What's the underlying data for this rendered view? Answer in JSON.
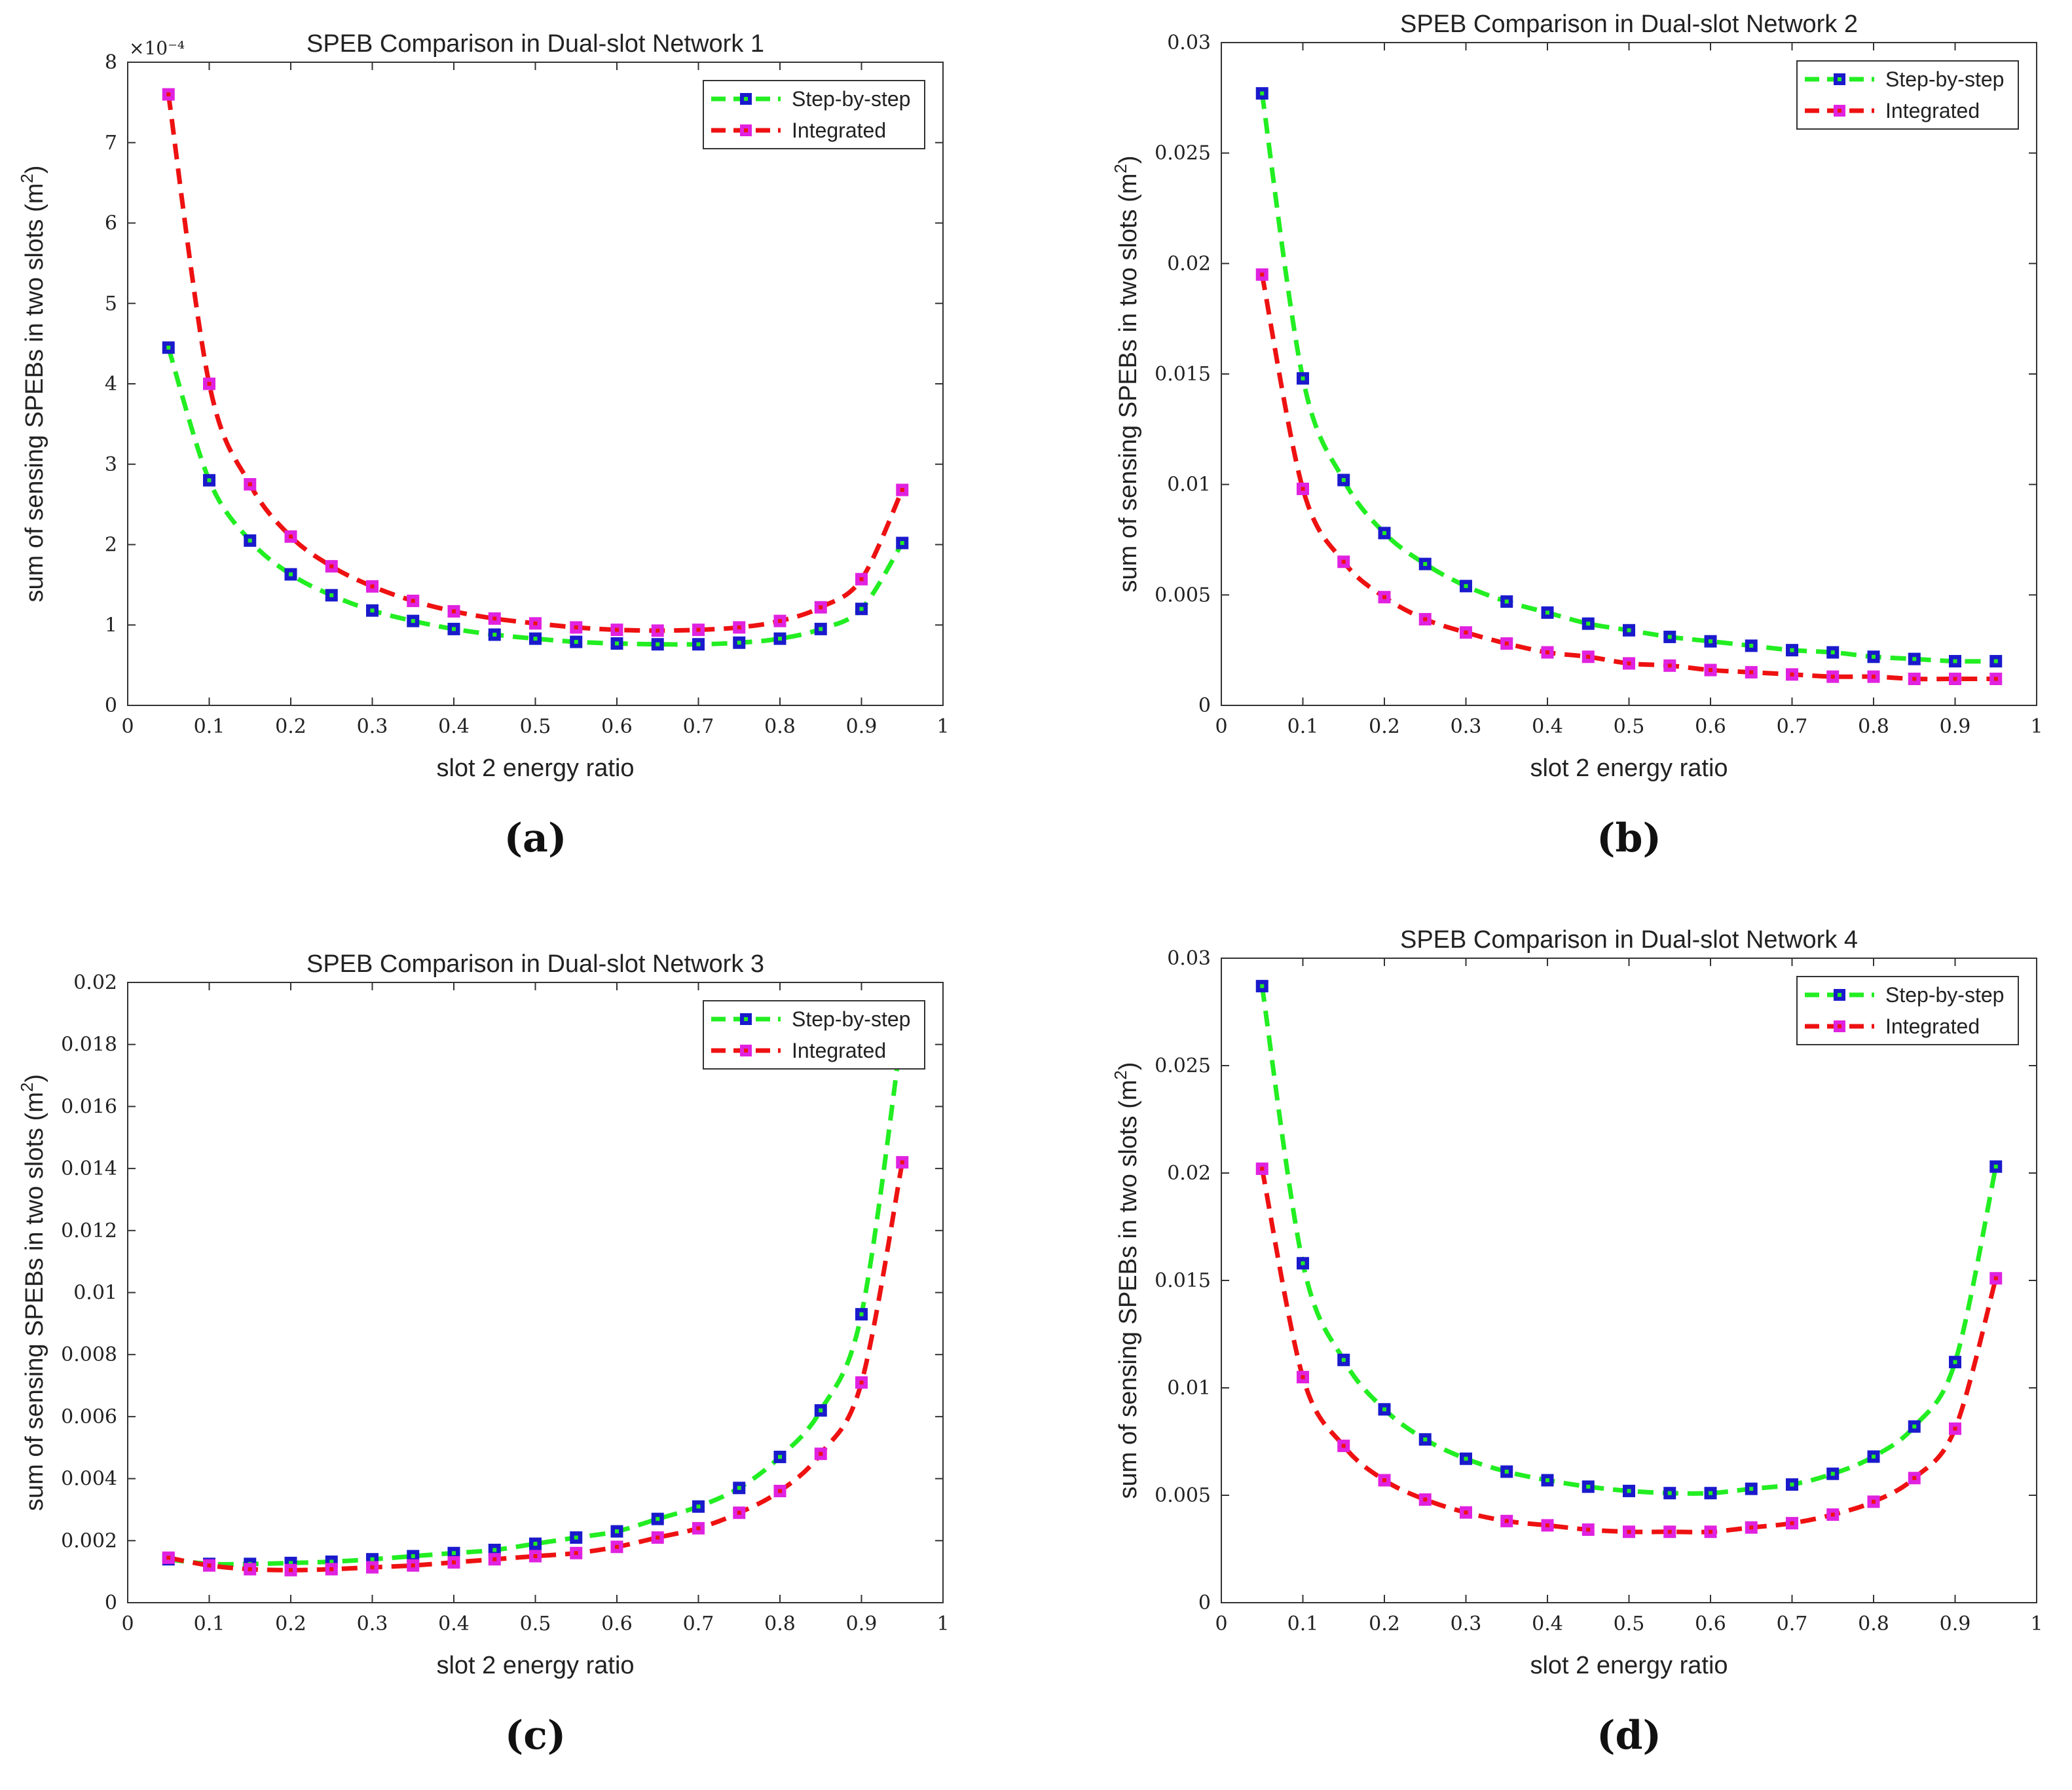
{
  "chart_data": [
    {
      "type": "line",
      "title": "SPEB Comparison in Dual-slot Network 1",
      "xlabel": "slot 2 energy ratio",
      "ylabel": "sum of sensing SPEBs in two slots (m^2)",
      "y_exponent": "×10⁻⁴",
      "caption": "(a)",
      "xlim": [
        0,
        1
      ],
      "ylim": [
        0,
        8
      ],
      "xticks": [
        "0",
        "0.1",
        "0.2",
        "0.3",
        "0.4",
        "0.5",
        "0.6",
        "0.7",
        "0.8",
        "0.9",
        "1"
      ],
      "yticks": [
        "0",
        "1",
        "2",
        "3",
        "4",
        "5",
        "6",
        "7",
        "8"
      ],
      "legend_position": "top-right",
      "x": [
        0.05,
        0.1,
        0.15,
        0.2,
        0.25,
        0.3,
        0.35,
        0.4,
        0.45,
        0.5,
        0.55,
        0.6,
        0.65,
        0.7,
        0.75,
        0.8,
        0.85,
        0.9,
        0.95
      ],
      "series": [
        {
          "name": "Step-by-step",
          "line_color": "#22ee22",
          "marker_color": "#1a1acc",
          "values": [
            4.45,
            2.8,
            2.05,
            1.63,
            1.37,
            1.18,
            1.05,
            0.95,
            0.88,
            0.83,
            0.79,
            0.77,
            0.76,
            0.76,
            0.78,
            0.83,
            0.95,
            1.2,
            2.02
          ]
        },
        {
          "name": "Integrated",
          "line_color": "#ee1111",
          "marker_color": "#e022e0",
          "values": [
            7.6,
            4.0,
            2.75,
            2.1,
            1.73,
            1.48,
            1.3,
            1.17,
            1.08,
            1.02,
            0.97,
            0.94,
            0.93,
            0.94,
            0.97,
            1.05,
            1.22,
            1.57,
            2.68
          ]
        }
      ]
    },
    {
      "type": "line",
      "title": "SPEB Comparison in Dual-slot Network 2",
      "xlabel": "slot 2 energy ratio",
      "ylabel": "sum of sensing SPEBs in two slots (m^2)",
      "caption": "(b)",
      "xlim": [
        0,
        1
      ],
      "ylim": [
        0,
        0.03
      ],
      "xticks": [
        "0",
        "0.1",
        "0.2",
        "0.3",
        "0.4",
        "0.5",
        "0.6",
        "0.7",
        "0.8",
        "0.9",
        "1"
      ],
      "yticks": [
        "0",
        "0.005",
        "0.01",
        "0.015",
        "0.02",
        "0.025",
        "0.03"
      ],
      "legend_position": "top-right",
      "x": [
        0.05,
        0.1,
        0.15,
        0.2,
        0.25,
        0.3,
        0.35,
        0.4,
        0.45,
        0.5,
        0.55,
        0.6,
        0.65,
        0.7,
        0.75,
        0.8,
        0.85,
        0.9,
        0.95
      ],
      "series": [
        {
          "name": "Step-by-step",
          "line_color": "#22ee22",
          "marker_color": "#1a1acc",
          "values": [
            0.0277,
            0.0148,
            0.0102,
            0.0078,
            0.0064,
            0.0054,
            0.0047,
            0.0042,
            0.0037,
            0.0034,
            0.0031,
            0.0029,
            0.0027,
            0.0025,
            0.0024,
            0.0022,
            0.0021,
            0.002,
            0.002
          ]
        },
        {
          "name": "Integrated",
          "line_color": "#ee1111",
          "marker_color": "#e022e0",
          "values": [
            0.0195,
            0.0098,
            0.0065,
            0.0049,
            0.0039,
            0.0033,
            0.0028,
            0.0024,
            0.0022,
            0.0019,
            0.0018,
            0.0016,
            0.0015,
            0.0014,
            0.0013,
            0.0013,
            0.0012,
            0.0012,
            0.0012
          ]
        }
      ]
    },
    {
      "type": "line",
      "title": "SPEB Comparison in Dual-slot Network 3",
      "xlabel": "slot 2 energy ratio",
      "ylabel": "sum of sensing SPEBs in two slots (m^2)",
      "caption": "(c)",
      "xlim": [
        0,
        1
      ],
      "ylim": [
        0,
        0.02
      ],
      "xticks": [
        "0",
        "0.1",
        "0.2",
        "0.3",
        "0.4",
        "0.5",
        "0.6",
        "0.7",
        "0.8",
        "0.9",
        "1"
      ],
      "yticks": [
        "0",
        "0.002",
        "0.004",
        "0.006",
        "0.008",
        "0.01",
        "0.012",
        "0.014",
        "0.016",
        "0.018",
        "0.02"
      ],
      "legend_position": "top-right",
      "x": [
        0.05,
        0.1,
        0.15,
        0.2,
        0.25,
        0.3,
        0.35,
        0.4,
        0.45,
        0.5,
        0.55,
        0.6,
        0.65,
        0.7,
        0.75,
        0.8,
        0.85,
        0.9,
        0.95
      ],
      "series": [
        {
          "name": "Step-by-step",
          "line_color": "#22ee22",
          "marker_color": "#1a1acc",
          "values": [
            0.0014,
            0.00125,
            0.00125,
            0.00128,
            0.00132,
            0.0014,
            0.0015,
            0.0016,
            0.0017,
            0.0019,
            0.0021,
            0.0023,
            0.0027,
            0.0031,
            0.0037,
            0.0047,
            0.0062,
            0.0093,
            0.0185
          ]
        },
        {
          "name": "Integrated",
          "line_color": "#ee1111",
          "marker_color": "#e022e0",
          "values": [
            0.00145,
            0.0012,
            0.00108,
            0.00105,
            0.00108,
            0.00114,
            0.0012,
            0.0013,
            0.0014,
            0.0015,
            0.0016,
            0.0018,
            0.0021,
            0.0024,
            0.0029,
            0.0036,
            0.0048,
            0.0071,
            0.0142
          ]
        }
      ]
    },
    {
      "type": "line",
      "title": "SPEB Comparison in Dual-slot Network 4",
      "xlabel": "slot 2 energy ratio",
      "ylabel": "sum of sensing SPEBs in two slots (m^2)",
      "caption": "(d)",
      "xlim": [
        0,
        1
      ],
      "ylim": [
        0,
        0.03
      ],
      "xticks": [
        "0",
        "0.1",
        "0.2",
        "0.3",
        "0.4",
        "0.5",
        "0.6",
        "0.7",
        "0.8",
        "0.9",
        "1"
      ],
      "yticks": [
        "0",
        "0.005",
        "0.01",
        "0.015",
        "0.02",
        "0.025",
        "0.03"
      ],
      "legend_position": "top-right",
      "x": [
        0.05,
        0.1,
        0.15,
        0.2,
        0.25,
        0.3,
        0.35,
        0.4,
        0.45,
        0.5,
        0.55,
        0.6,
        0.65,
        0.7,
        0.75,
        0.8,
        0.85,
        0.9,
        0.95
      ],
      "series": [
        {
          "name": "Step-by-step",
          "line_color": "#22ee22",
          "marker_color": "#1a1acc",
          "values": [
            0.0287,
            0.0158,
            0.0113,
            0.009,
            0.0076,
            0.0067,
            0.0061,
            0.0057,
            0.0054,
            0.0052,
            0.0051,
            0.0051,
            0.0053,
            0.0055,
            0.006,
            0.0068,
            0.0082,
            0.0112,
            0.0203
          ]
        },
        {
          "name": "Integrated",
          "line_color": "#ee1111",
          "marker_color": "#e022e0",
          "values": [
            0.0202,
            0.0105,
            0.0073,
            0.0057,
            0.0048,
            0.0042,
            0.0038,
            0.0036,
            0.0034,
            0.0033,
            0.0033,
            0.0033,
            0.0035,
            0.0037,
            0.0041,
            0.0047,
            0.0058,
            0.0081,
            0.0151
          ]
        }
      ]
    }
  ]
}
